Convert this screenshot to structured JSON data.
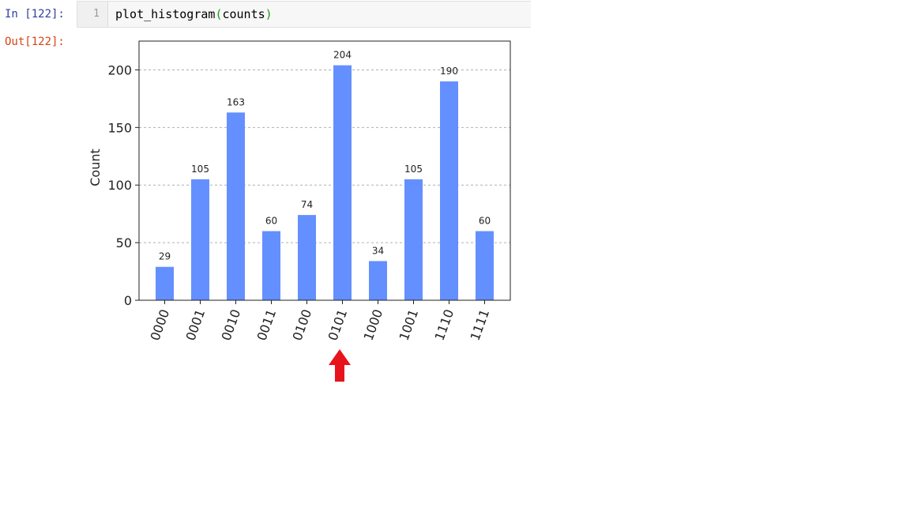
{
  "notebook": {
    "in_prompt": "In [122]:",
    "out_prompt": "Out[122]:",
    "line_number": "1",
    "code": {
      "func": "plot_histogram",
      "open": "(",
      "arg": "counts",
      "close": ")"
    }
  },
  "colors": {
    "bar": "#648fff",
    "grid": "#b0b0b0",
    "arrow": "#e8141b",
    "in_prompt": "#303f9f",
    "out_prompt": "#d84315"
  },
  "annotation": {
    "arrow_icon": "red-up-arrow-icon",
    "points_to": "0101"
  },
  "chart_data": {
    "type": "bar",
    "categories": [
      "0000",
      "0001",
      "0010",
      "0011",
      "0100",
      "0101",
      "1000",
      "1001",
      "1110",
      "1111"
    ],
    "values": [
      29,
      105,
      163,
      60,
      74,
      204,
      34,
      105,
      190,
      60
    ],
    "xlabel": "",
    "ylabel": "Count",
    "ylim": [
      0,
      225
    ],
    "yticks": [
      0,
      50,
      100,
      150,
      200
    ],
    "grid": "horizontal-dashed",
    "data_labels": true,
    "legend": "none"
  }
}
